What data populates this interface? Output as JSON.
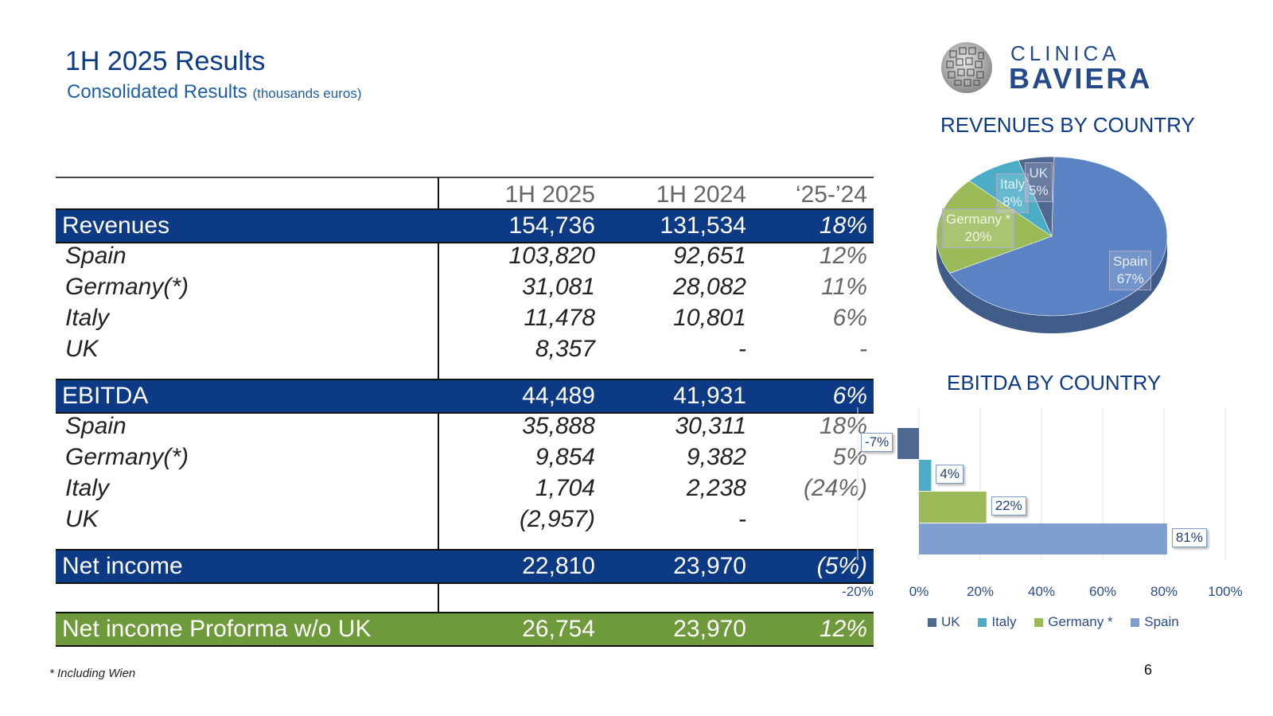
{
  "header": {
    "title": "1H 2025 Results",
    "subtitle": "Consolidated Results",
    "subtitle_unit": "(thousands euros)"
  },
  "logo": {
    "line1": "CLINICA",
    "line2": "BAVIERA"
  },
  "table": {
    "columns": [
      "1H 2025",
      "1H 2024",
      "‘25-’24"
    ],
    "rows": [
      {
        "label": "Revenues",
        "v2025": "154,736",
        "v2024": "131,534",
        "change": "18%"
      },
      {
        "label": "Spain",
        "v2025": "103,820",
        "v2024": "92,651",
        "change": "12%"
      },
      {
        "label": "Germany(*)",
        "v2025": "31,081",
        "v2024": "28,082",
        "change": "11%"
      },
      {
        "label": "Italy",
        "v2025": "11,478",
        "v2024": "10,801",
        "change": "6%"
      },
      {
        "label": "UK",
        "v2025": "8,357",
        "v2024": "-",
        "change": "-"
      },
      {
        "label": "EBITDA",
        "v2025": "44,489",
        "v2024": "41,931",
        "change": "6%"
      },
      {
        "label": "Spain",
        "v2025": "35,888",
        "v2024": "30,311",
        "change": "18%"
      },
      {
        "label": "Germany(*)",
        "v2025": "9,854",
        "v2024": "9,382",
        "change": "5%"
      },
      {
        "label": "Italy",
        "v2025": "1,704",
        "v2024": "2,238",
        "change": "(24%)"
      },
      {
        "label": "UK",
        "v2025": "(2,957)",
        "v2024": "-",
        "change": ""
      },
      {
        "label": "Net income",
        "v2025": "22,810",
        "v2024": "23,970",
        "change": "(5%)"
      },
      {
        "label": "Net income Proforma w/o UK",
        "v2025": "26,754",
        "v2024": "23,970",
        "change": "12%"
      }
    ]
  },
  "footnote": "* Including Wien",
  "page_number": "6",
  "colors": {
    "navy": "#0d3a85",
    "green": "#6f9a3b",
    "spain": "#5b83c4",
    "germany": "#9bbb59",
    "italy": "#4aacc5",
    "uk": "#4f6891"
  },
  "chart_data": [
    {
      "type": "pie",
      "title": "REVENUES BY COUNTRY",
      "slices": [
        {
          "name": "Spain",
          "label": "Spain",
          "value": 67,
          "value_label": "67%",
          "color": "#5b83c4"
        },
        {
          "name": "Germany *",
          "label": "Germany *",
          "value": 20,
          "value_label": "20%",
          "color": "#9bbb59"
        },
        {
          "name": "Italy",
          "label": "Italy",
          "value": 8,
          "value_label": "8%",
          "color": "#4aacc5"
        },
        {
          "name": "UK",
          "label": "UK",
          "value": 5,
          "value_label": "5%",
          "color": "#4f6891"
        }
      ]
    },
    {
      "type": "bar",
      "orientation": "horizontal",
      "title": "EBITDA BY COUNTRY",
      "categories": [
        "UK",
        "Italy",
        "Germany *",
        "Spain"
      ],
      "values": [
        -7,
        4,
        22,
        81
      ],
      "value_labels": [
        "-7%",
        "4%",
        "22%",
        "81%"
      ],
      "colors": [
        "#4f6891",
        "#4aacc5",
        "#9bbb59",
        "#7f9fd0"
      ],
      "xlim": [
        -20,
        100
      ],
      "xticks": [
        "-20%",
        "0%",
        "20%",
        "40%",
        "60%",
        "80%",
        "100%"
      ],
      "grid": true,
      "legend": "bottom"
    }
  ]
}
